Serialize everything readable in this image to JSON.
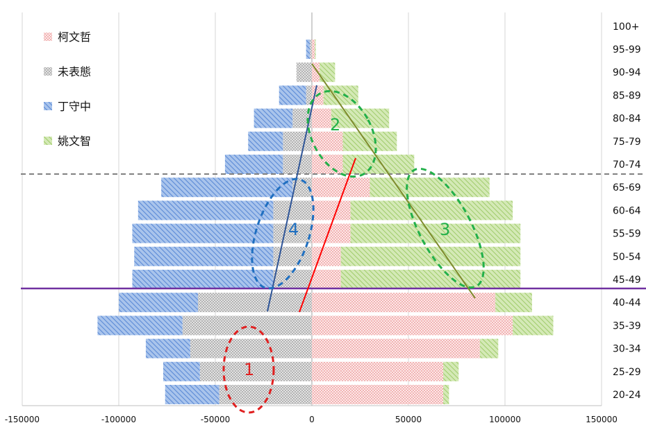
{
  "chart_data": {
    "type": "bar",
    "orientation": "horizontal",
    "stacked": "diverging",
    "categories": [
      "20-24",
      "25-29",
      "30-34",
      "35-39",
      "40-44",
      "45-49",
      "50-54",
      "55-59",
      "60-64",
      "65-69",
      "70-74",
      "75-79",
      "80-84",
      "85-89",
      "90-94",
      "95-99",
      "100+"
    ],
    "series": [
      {
        "name": "柯文哲",
        "color": "#f4b8b8",
        "values": [
          68000,
          68000,
          87000,
          104000,
          95000,
          15000,
          15000,
          20000,
          20000,
          30000,
          16000,
          16000,
          10000,
          6000,
          4000,
          1500,
          0
        ]
      },
      {
        "name": "姚文智",
        "color": "#b8d98a",
        "values": [
          3000,
          8000,
          9500,
          21000,
          19000,
          93000,
          93000,
          88000,
          84000,
          62000,
          37000,
          28000,
          30000,
          18000,
          8000,
          500,
          0
        ]
      },
      {
        "name": "未表態",
        "color": "#c8c8c8",
        "values": [
          -48000,
          -58000,
          -63000,
          -67000,
          -59000,
          -20000,
          -20000,
          -20000,
          -20000,
          -10000,
          -15000,
          -15000,
          -10000,
          -3000,
          -8000,
          -1000,
          0
        ]
      },
      {
        "name": "丁守中",
        "color": "#8fb2e3",
        "values": [
          -28000,
          -19000,
          -23000,
          -44000,
          -41000,
          -73000,
          -72000,
          -73000,
          -70000,
          -68000,
          -30000,
          -18000,
          -20000,
          -14000,
          0,
          -2000,
          0
        ]
      }
    ],
    "xlim": [
      -150000,
      150000
    ],
    "xticks": [
      "-150000",
      "-100000",
      "-50000",
      "0",
      "50000",
      "100000",
      "150000"
    ],
    "grid": "vertical",
    "legend_position": "top-left"
  },
  "annotations": [
    {
      "label": "1",
      "color": "#e02020"
    },
    {
      "label": "2",
      "color": "#22b04a"
    },
    {
      "label": "3",
      "color": "#22b04a"
    },
    {
      "label": "4",
      "color": "#1f6fc0"
    }
  ]
}
